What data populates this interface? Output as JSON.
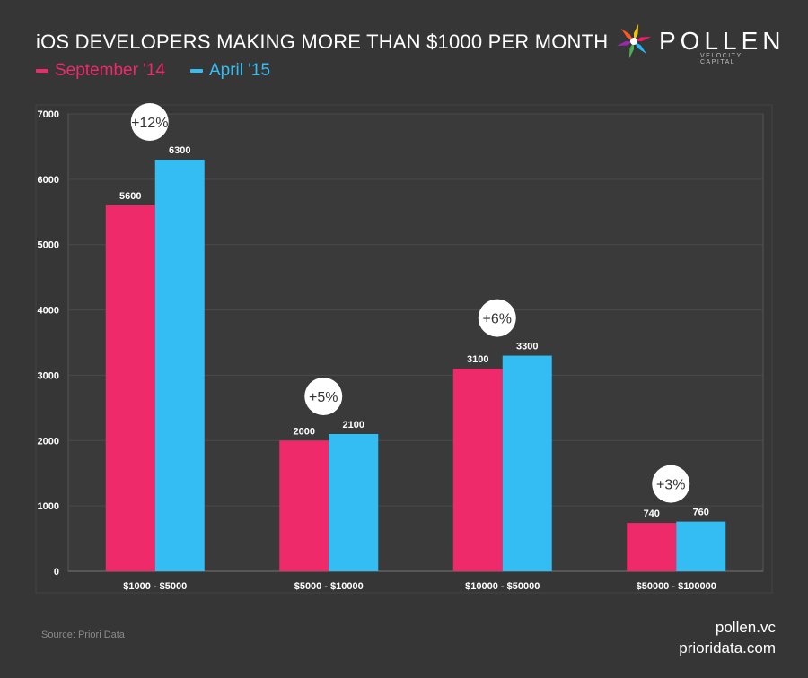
{
  "title": "iOS DEVELOPERS MAKING MORE THAN $1000 PER MONTH",
  "brand": {
    "name": "POLLEN",
    "tagline": "VELOCITY CAPITAL",
    "logo_colors": [
      "#f1c40f",
      "#e91e63",
      "#29b6f6",
      "#4caf50",
      "#9c27b0",
      "#ff5722"
    ]
  },
  "colors": {
    "background": "#363636",
    "plot_background": "#3a3a3a",
    "grid": "#4a4a4a",
    "series1": "#ee2a6b",
    "series2": "#33bdf2"
  },
  "chart_data": {
    "type": "bar",
    "categories": [
      "$1000 - $5000",
      "$5000 - $10000",
      "$10000 - $50000",
      "$50000 - $100000"
    ],
    "series": [
      {
        "name": "September '14",
        "values": [
          5600,
          2000,
          3100,
          740
        ]
      },
      {
        "name": "April '15",
        "values": [
          6300,
          2100,
          3300,
          760
        ]
      }
    ],
    "annotations": [
      "+12%",
      "+5%",
      "+6%",
      "+3%"
    ],
    "yticks": [
      0,
      1000,
      2000,
      3000,
      4000,
      5000,
      6000,
      7000
    ],
    "ylim": [
      0,
      7000
    ],
    "grid": true,
    "legend_position": "top-left"
  },
  "footer": {
    "source": "Source: Priori Data",
    "credits": [
      "pollen.vc",
      "prioridata.com"
    ]
  }
}
